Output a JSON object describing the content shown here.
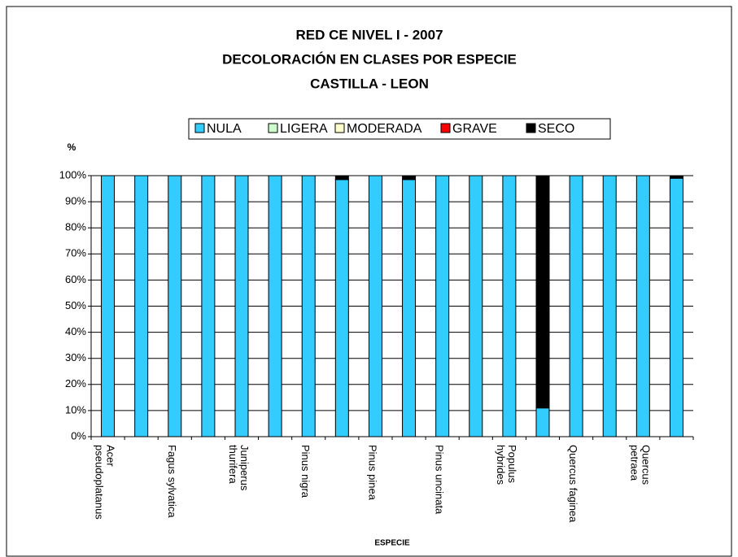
{
  "chart_data": {
    "type": "stacked_bar",
    "title": [
      "RED CE NIVEL I - 2007",
      "DECOLORACIÓN EN CLASES POR ESPECIE",
      "CASTILLA - LEON"
    ],
    "y_label": "%",
    "x_label": "ESPECIE",
    "categories": [
      "Acer\npseudoplatanus",
      null,
      "Fagus sylvatica",
      null,
      "Juniperus\nthurifera",
      null,
      "Pinus nigra",
      null,
      "Pinus pinea",
      null,
      "Pinus uncinata",
      null,
      "Populus\nhybrides",
      null,
      "Quercus faginea",
      null,
      "Quercus\npetraea",
      null
    ],
    "series": [
      {
        "name": "NULA",
        "color": "#33ccff",
        "values": [
          100,
          100,
          100,
          100,
          100,
          100,
          100,
          98.5,
          100,
          98.5,
          100,
          100,
          100,
          11,
          100,
          100,
          100,
          99
        ]
      },
      {
        "name": "LIGERA",
        "color": "#ccffcc",
        "values": [
          0,
          0,
          0,
          0,
          0,
          0,
          0,
          0,
          0,
          0,
          0,
          0,
          0,
          0,
          0,
          0,
          0,
          0
        ]
      },
      {
        "name": "MODERADA",
        "color": "#ffffcc",
        "values": [
          0,
          0,
          0,
          0,
          0,
          0,
          0,
          0,
          0,
          0,
          0,
          0,
          0,
          0,
          0,
          0,
          0,
          0
        ]
      },
      {
        "name": "GRAVE",
        "color": "#ff0000",
        "values": [
          0,
          0,
          0,
          0,
          0,
          0,
          0,
          0,
          0,
          0,
          0,
          0,
          0,
          0,
          0,
          0,
          0,
          0
        ]
      },
      {
        "name": "SECO",
        "color": "#000000",
        "values": [
          0,
          0,
          0,
          0,
          0,
          0,
          0,
          1.5,
          0,
          1.5,
          0,
          0,
          0,
          89,
          0,
          0,
          0,
          1
        ]
      }
    ],
    "ylim": [
      0,
      100
    ],
    "yticks": [
      {
        "value": 0,
        "label": "0%"
      },
      {
        "value": 10,
        "label": "10%"
      },
      {
        "value": 20,
        "label": "20%"
      },
      {
        "value": 30,
        "label": "30%"
      },
      {
        "value": 40,
        "label": "40%"
      },
      {
        "value": 50,
        "label": "50%"
      },
      {
        "value": 60,
        "label": "60%"
      },
      {
        "value": 70,
        "label": "70%"
      },
      {
        "value": 80,
        "label": "80%"
      },
      {
        "value": 90,
        "label": "90%"
      },
      {
        "value": 100,
        "label": "100%"
      }
    ],
    "grid": true,
    "legend": "top"
  }
}
